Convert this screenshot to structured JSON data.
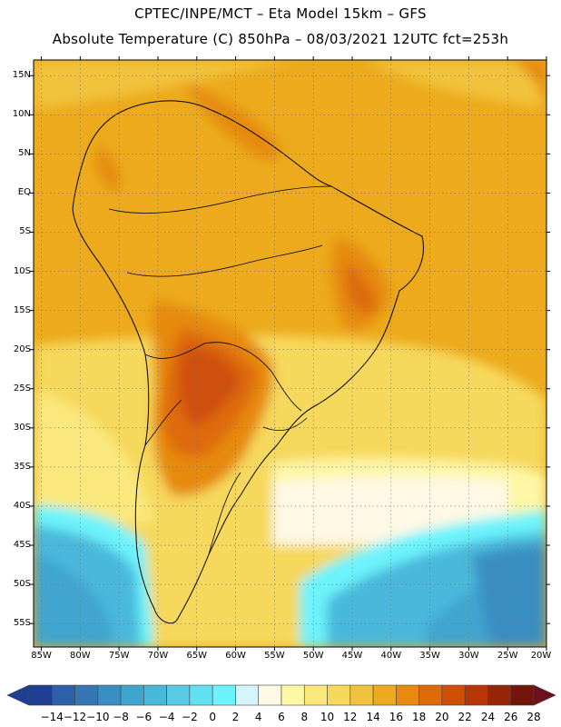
{
  "header": {
    "line1": "CPTEC/INPE/MCT –  Eta Model 15km – GFS",
    "line2": "Absolute Temperature (C) 850hPa – 08/03/2021 12UTC fct=253h"
  },
  "axes": {
    "lat_labels": [
      "15N",
      "10N",
      "5N",
      "EQ",
      "5S",
      "10S",
      "15S",
      "20S",
      "25S",
      "30S",
      "35S",
      "40S",
      "45S",
      "50S",
      "55S"
    ],
    "lat_values": [
      15,
      10,
      5,
      0,
      -5,
      -10,
      -15,
      -20,
      -25,
      -30,
      -35,
      -40,
      -45,
      -50,
      -55
    ],
    "lon_labels": [
      "85W",
      "80W",
      "75W",
      "70W",
      "65W",
      "60W",
      "55W",
      "50W",
      "45W",
      "40W",
      "35W",
      "30W",
      "25W",
      "20W"
    ],
    "lon_values": [
      -85,
      -80,
      -75,
      -70,
      -65,
      -60,
      -55,
      -50,
      -45,
      -40,
      -35,
      -30,
      -25,
      -20
    ],
    "lon_range": [
      -86,
      -20
    ],
    "lat_range": [
      -58,
      17
    ]
  },
  "colorbar": {
    "labels": [
      "-14",
      "-12",
      "-10",
      "-8",
      "-6",
      "-4",
      "-2",
      "0",
      "2",
      "4",
      "6",
      "8",
      "10",
      "12",
      "14",
      "16",
      "18",
      "20",
      "22",
      "24",
      "26",
      "28"
    ],
    "colors": [
      "#1f3f93",
      "#2d60a8",
      "#3477b4",
      "#3a8ec2",
      "#3fa5cf",
      "#48b8db",
      "#5acbe6",
      "#62dff0",
      "#6cf3fb",
      "#d4f5fb",
      "#fff8e4",
      "#fdf7a6",
      "#fae87d",
      "#f6d85c",
      "#f1c23b",
      "#ecaa1c",
      "#e68a10",
      "#de6a0a",
      "#cf4f07",
      "#b63606",
      "#962409",
      "#74150c"
    ]
  },
  "colors": {
    "ocean_tropical": "#ecaa1c",
    "ocean_subtropical": "#f6d85c",
    "south_cold": "#48b8db",
    "hot_land": "#de6a0a"
  }
}
